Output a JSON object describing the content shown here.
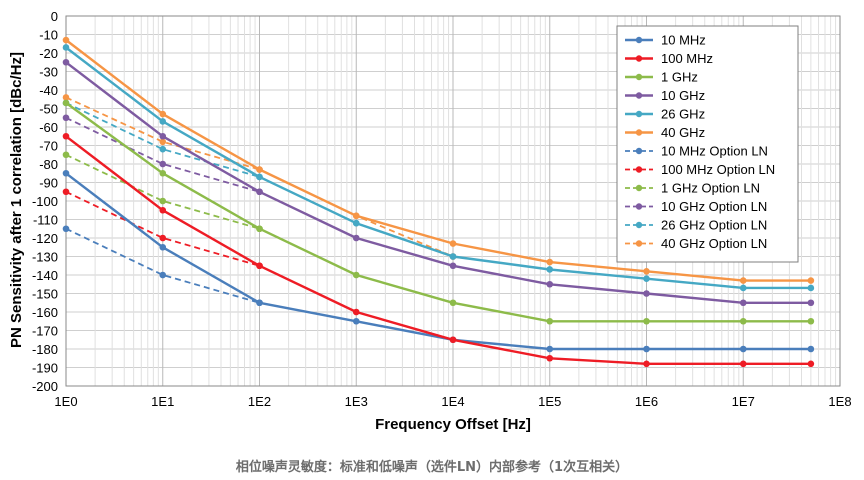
{
  "caption": "相位噪声灵敏度：标准和低噪声（选件LN）内部参考（1次互相关）",
  "chart_data": {
    "type": "line",
    "title": "",
    "xlabel": "Frequency Offset [Hz]",
    "ylabel": "PN Sensitivity after 1 correlation [dBc/Hz]",
    "xscale": "log",
    "xlim": [
      1,
      100000000
    ],
    "ylim": [
      -200,
      0
    ],
    "ytick_step": 10,
    "x_tick_labels": [
      "1E0",
      "1E1",
      "1E2",
      "1E3",
      "1E4",
      "1E5",
      "1E6",
      "1E7",
      "1E8"
    ],
    "grid": true,
    "legend_position": "top-right",
    "x": [
      1,
      10,
      100,
      1000,
      10000,
      100000,
      1000000,
      10000000,
      50000000
    ],
    "series": [
      {
        "name": "10 MHz",
        "color": "#4a7ebb",
        "dash": false,
        "x": [
          1,
          10,
          100,
          1000,
          10000,
          100000,
          1000000,
          10000000,
          50000000
        ],
        "values": [
          -85,
          -125,
          -155,
          -165,
          -175,
          -180,
          -180,
          -180,
          -180
        ]
      },
      {
        "name": "100 MHz",
        "color": "#ee1c25",
        "dash": false,
        "x": [
          1,
          10,
          100,
          1000,
          10000,
          100000,
          1000000,
          10000000,
          50000000
        ],
        "values": [
          -65,
          -105,
          -135,
          -160,
          -175,
          -185,
          -188,
          -188,
          -188
        ]
      },
      {
        "name": "1 GHz",
        "color": "#8dbb4a",
        "dash": false,
        "x": [
          1,
          10,
          100,
          1000,
          10000,
          100000,
          1000000,
          10000000,
          50000000
        ],
        "values": [
          -47,
          -85,
          -115,
          -140,
          -155,
          -165,
          -165,
          -165,
          -165
        ]
      },
      {
        "name": "10 GHz",
        "color": "#7e5ba1",
        "dash": false,
        "x": [
          1,
          10,
          100,
          1000,
          10000,
          100000,
          1000000,
          10000000,
          50000000
        ],
        "values": [
          -25,
          -65,
          -95,
          -120,
          -135,
          -145,
          -150,
          -155,
          -155
        ]
      },
      {
        "name": "26 GHz",
        "color": "#45a8c4",
        "dash": false,
        "x": [
          1,
          10,
          100,
          1000,
          10000,
          100000,
          1000000,
          10000000,
          50000000
        ],
        "values": [
          -17,
          -57,
          -87,
          -112,
          -130,
          -137,
          -142,
          -147,
          -147
        ]
      },
      {
        "name": "40 GHz",
        "color": "#f69545",
        "dash": false,
        "x": [
          1,
          10,
          100,
          1000,
          10000,
          100000,
          1000000,
          10000000,
          50000000
        ],
        "values": [
          -13,
          -53,
          -83,
          -108,
          -123,
          -133,
          -138,
          -143,
          -143
        ]
      },
      {
        "name": "10 MHz Option LN",
        "color": "#4a7ebb",
        "dash": true,
        "x": [
          1,
          10,
          100
        ],
        "values": [
          -115,
          -140,
          -155
        ]
      },
      {
        "name": "100 MHz Option LN",
        "color": "#ee1c25",
        "dash": true,
        "x": [
          1,
          10,
          100
        ],
        "values": [
          -95,
          -120,
          -135
        ]
      },
      {
        "name": "1 GHz Option LN",
        "color": "#8dbb4a",
        "dash": true,
        "x": [
          1,
          10,
          100
        ],
        "values": [
          -75,
          -100,
          -115
        ]
      },
      {
        "name": "10 GHz Option LN",
        "color": "#7e5ba1",
        "dash": true,
        "x": [
          1,
          10,
          100
        ],
        "values": [
          -55,
          -80,
          -95
        ]
      },
      {
        "name": "26 GHz Option LN",
        "color": "#45a8c4",
        "dash": true,
        "x": [
          1,
          10,
          100,
          1000,
          10000
        ],
        "values": [
          -47,
          -72,
          -87,
          -112,
          -130
        ]
      },
      {
        "name": "40 GHz Option LN",
        "color": "#f69545",
        "dash": true,
        "x": [
          1,
          10,
          100,
          1000,
          10000
        ],
        "values": [
          -44,
          -68,
          -83,
          -108,
          -130
        ]
      }
    ]
  }
}
